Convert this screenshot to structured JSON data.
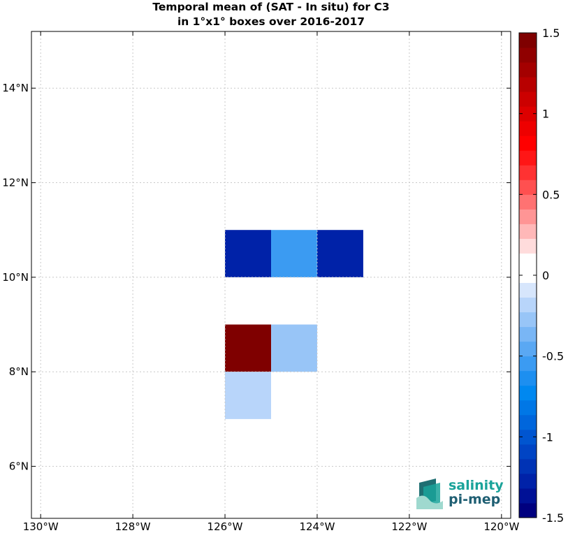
{
  "title": {
    "line1": "Temporal mean of (SAT - In situ) for C3",
    "line2": "in 1°x1° boxes over 2016-2017"
  },
  "map": {
    "lon_range": [
      -130.2,
      -119.8
    ],
    "lat_range": [
      4.9,
      15.2
    ],
    "grid": true,
    "lon_ticks": [
      {
        "value": -130,
        "label": "130°W"
      },
      {
        "value": -128,
        "label": "128°W"
      },
      {
        "value": -126,
        "label": "126°W"
      },
      {
        "value": -124,
        "label": "124°W"
      },
      {
        "value": -122,
        "label": "122°W"
      },
      {
        "value": -120,
        "label": "120°W"
      }
    ],
    "lat_ticks": [
      {
        "value": 6,
        "label": "6°N"
      },
      {
        "value": 8,
        "label": "8°N"
      },
      {
        "value": 10,
        "label": "10°N"
      },
      {
        "value": 12,
        "label": "12°N"
      },
      {
        "value": 14,
        "label": "14°N"
      }
    ],
    "cells": [
      {
        "lon0": -126,
        "lon1": -125,
        "lat0": 10,
        "lat1": 11,
        "value": -1.25
      },
      {
        "lon0": -125,
        "lon1": -124,
        "lat0": 10,
        "lat1": 11,
        "value": -0.55
      },
      {
        "lon0": -124,
        "lon1": -123,
        "lat0": 10,
        "lat1": 11,
        "value": -1.25
      },
      {
        "lon0": -126,
        "lon1": -125,
        "lat0": 8,
        "lat1": 9,
        "value": 1.45
      },
      {
        "lon0": -125,
        "lon1": -124,
        "lat0": 8,
        "lat1": 9,
        "value": -0.3
      },
      {
        "lon0": -126,
        "lon1": -125,
        "lat0": 7,
        "lat1": 8,
        "value": -0.15
      }
    ]
  },
  "colorbar": {
    "min": -1.5,
    "max": 1.5,
    "colors": [
      "#00007f",
      "#001196",
      "#0022a8",
      "#0033b5",
      "#0044c4",
      "#0055d0",
      "#0066dc",
      "#0077e6",
      "#0088f0",
      "#1d8ff0",
      "#3b9bf2",
      "#5aa8f3",
      "#79b6f5",
      "#98c5f7",
      "#b8d5fa",
      "#d7e6fc",
      "#ffffff",
      "#ffffff",
      "#ffdcdc",
      "#ffb8b8",
      "#ff9595",
      "#ff7272",
      "#ff5050",
      "#ff3232",
      "#ff1616",
      "#ff0000",
      "#ee0000",
      "#dd0000",
      "#cc0000",
      "#b80000",
      "#a40000",
      "#900000",
      "#7f0000"
    ],
    "ticks": [
      {
        "value": 1.5,
        "label": "1.5"
      },
      {
        "value": 1,
        "label": "1"
      },
      {
        "value": 0.5,
        "label": "0.5"
      },
      {
        "value": 0,
        "label": "0"
      },
      {
        "value": -0.5,
        "label": "-0.5"
      },
      {
        "value": -1,
        "label": "-1"
      },
      {
        "value": -1.5,
        "label": "-1.5"
      }
    ]
  },
  "logo": {
    "line1": "salinity",
    "line2": "pi-mep",
    "primary_color": "#1aa39a",
    "secondary_color": "#1f5f73"
  }
}
